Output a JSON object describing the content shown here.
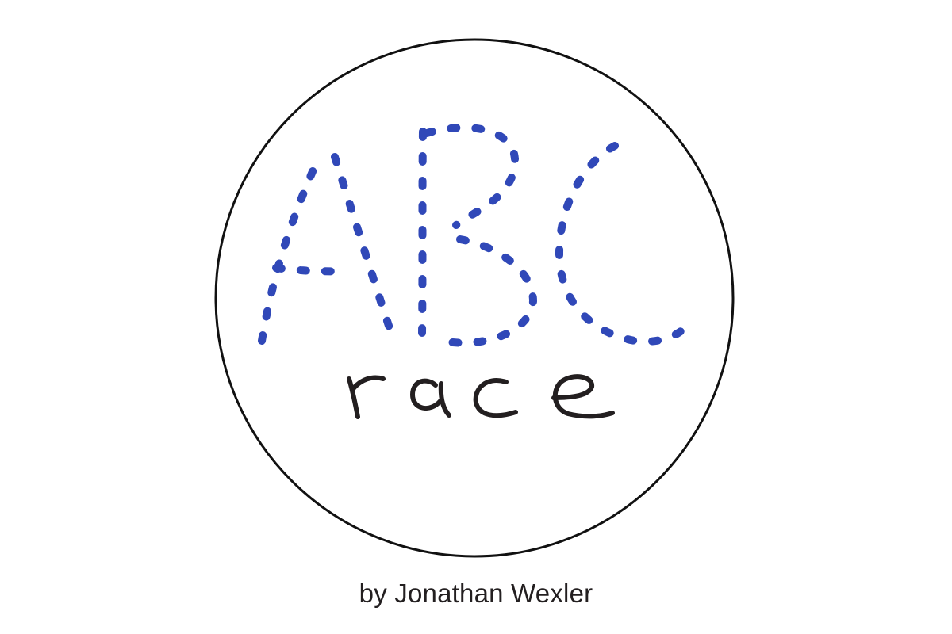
{
  "logo": {
    "letters": "ABC",
    "word": "race",
    "letters_color": "#3048b8",
    "word_color": "#231f20",
    "ring_color": "#111111"
  },
  "byline": "by Jonathan Wexler",
  "icons": {
    "logo_mark": "abc-race-logo-icon"
  }
}
